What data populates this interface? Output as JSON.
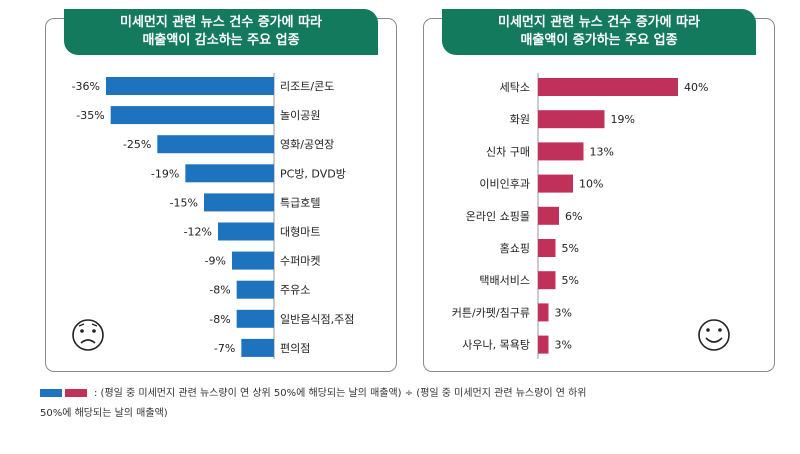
{
  "colors": {
    "decrease": "#1e73be",
    "increase": "#c0315a",
    "title_bg": "#137a5d"
  },
  "left_panel": {
    "title_line1": "미세먼지 관련 뉴스 건수 증가에 따라",
    "title_line2": "매출액이 감소하는 주요 업종",
    "face_icon": "sad-face-icon"
  },
  "right_panel": {
    "title_line1": "미세먼지 관련 뉴스 건수 증가에 따라",
    "title_line2": "매출액이 증가하는 주요 업종",
    "face_icon": "smiley-face-icon"
  },
  "legend": {
    "text": ": (평일 중 미세먼지 관련 뉴스량이 연 상위 50%에 해당되는 날의 매출액) ÷ (평일 중 미세먼지 관련 뉴스량이 연 하위",
    "text_line2": "50%에 해당되는 날의 매출액)"
  },
  "chart_data": [
    {
      "type": "bar",
      "orientation": "horizontal",
      "categories": [
        "리조트/콘도",
        "놀이공원",
        "영화/공연장",
        "PC방, DVD방",
        "특급호텔",
        "대형마트",
        "수퍼마켓",
        "주유소",
        "일반음식점,주점",
        "편의점"
      ],
      "values": [
        -36,
        -35,
        -25,
        -19,
        -15,
        -12,
        -9,
        -8,
        -8,
        -7
      ],
      "value_labels": [
        "-36%",
        "-35%",
        "-25%",
        "-19%",
        "-15%",
        "-12%",
        "-9%",
        "-8%",
        "-8%",
        "-7%"
      ],
      "xlim": [
        -36,
        0
      ],
      "color": "#1e73be"
    },
    {
      "type": "bar",
      "orientation": "horizontal",
      "categories": [
        "세탁소",
        "화원",
        "신차 구매",
        "이비인후과",
        "온라인 쇼핑몰",
        "홈쇼핑",
        "택배서비스",
        "커튼/카펫/침구류",
        "사우나, 목욕탕"
      ],
      "values": [
        40,
        19,
        13,
        10,
        6,
        5,
        5,
        3,
        3
      ],
      "value_labels": [
        "40%",
        "19%",
        "13%",
        "10%",
        "6%",
        "5%",
        "5%",
        "3%",
        "3%"
      ],
      "xlim": [
        0,
        40
      ],
      "color": "#c0315a"
    }
  ]
}
